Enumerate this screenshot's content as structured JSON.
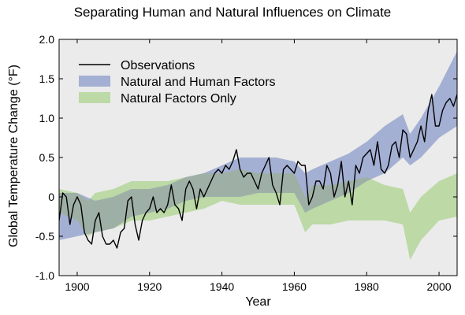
{
  "chart_data": {
    "type": "line",
    "title": "Separating Human and Natural Influences on Climate",
    "xlabel": "Year",
    "ylabel": "Global Temperature Change (°F)",
    "xlim": [
      1895,
      2005
    ],
    "ylim": [
      -1.0,
      2.0
    ],
    "xticks": [
      1900,
      1920,
      1940,
      1960,
      1980,
      2000
    ],
    "yticks": [
      -1.0,
      -0.5,
      0,
      0.5,
      1.0,
      1.5,
      2.0
    ],
    "ytick_labels": [
      "-1.0",
      "-0.5",
      "0",
      "0.5",
      "1.0",
      "1.5",
      "2.0"
    ],
    "grid": false,
    "legend_position": "top-left",
    "legend": [
      "Observations",
      "Natural and Human Factors",
      "Natural Factors Only"
    ],
    "colors": {
      "observations": "#000000",
      "natural_and_human": "#a4b0d3",
      "natural_only": "#bcd9a6",
      "overlap": "#9eb0a6",
      "plot_background": "#ebebeb"
    },
    "series": [
      {
        "name": "Observations",
        "kind": "line",
        "x": [
          1895,
          1896,
          1897,
          1898,
          1899,
          1900,
          1901,
          1902,
          1903,
          1904,
          1905,
          1906,
          1907,
          1908,
          1909,
          1910,
          1911,
          1912,
          1913,
          1914,
          1915,
          1916,
          1917,
          1918,
          1919,
          1920,
          1921,
          1922,
          1923,
          1924,
          1925,
          1926,
          1927,
          1928,
          1929,
          1930,
          1931,
          1932,
          1933,
          1934,
          1935,
          1936,
          1937,
          1938,
          1939,
          1940,
          1941,
          1942,
          1943,
          1944,
          1945,
          1946,
          1947,
          1948,
          1949,
          1950,
          1951,
          1952,
          1953,
          1954,
          1955,
          1956,
          1957,
          1958,
          1959,
          1960,
          1961,
          1962,
          1963,
          1964,
          1965,
          1966,
          1967,
          1968,
          1969,
          1970,
          1971,
          1972,
          1973,
          1974,
          1975,
          1976,
          1977,
          1978,
          1979,
          1980,
          1981,
          1982,
          1983,
          1984,
          1985,
          1986,
          1987,
          1988,
          1989,
          1990,
          1991,
          1992,
          1993,
          1994,
          1995,
          1996,
          1997,
          1998,
          1999,
          2000,
          2001,
          2002,
          2003,
          2004,
          2005
        ],
        "y": [
          -0.3,
          0.05,
          0.0,
          -0.35,
          -0.1,
          0.0,
          -0.1,
          -0.45,
          -0.55,
          -0.6,
          -0.3,
          -0.2,
          -0.5,
          -0.6,
          -0.6,
          -0.55,
          -0.65,
          -0.45,
          -0.4,
          -0.05,
          0.0,
          -0.35,
          -0.55,
          -0.3,
          -0.2,
          -0.15,
          0.0,
          -0.2,
          -0.15,
          -0.2,
          -0.1,
          0.15,
          -0.1,
          -0.15,
          -0.3,
          0.1,
          0.2,
          0.1,
          -0.15,
          0.1,
          0.0,
          0.1,
          0.2,
          0.3,
          0.35,
          0.3,
          0.4,
          0.35,
          0.45,
          0.6,
          0.35,
          0.25,
          0.3,
          0.3,
          0.2,
          0.1,
          0.3,
          0.4,
          0.5,
          0.15,
          0.05,
          -0.1,
          0.35,
          0.4,
          0.35,
          0.3,
          0.45,
          0.4,
          0.4,
          -0.1,
          0.0,
          0.2,
          0.2,
          0.1,
          0.4,
          0.3,
          0.0,
          0.15,
          0.45,
          0.0,
          0.2,
          -0.1,
          0.4,
          0.3,
          0.5,
          0.55,
          0.6,
          0.4,
          0.7,
          0.35,
          0.3,
          0.4,
          0.65,
          0.7,
          0.5,
          0.85,
          0.8,
          0.5,
          0.6,
          0.7,
          0.9,
          0.7,
          1.1,
          1.3,
          0.9,
          0.9,
          1.1,
          1.2,
          1.25,
          1.15,
          1.3
        ]
      },
      {
        "name": "Natural and Human Factors",
        "kind": "band",
        "x": [
          1895,
          1900,
          1905,
          1910,
          1915,
          1920,
          1925,
          1930,
          1935,
          1940,
          1945,
          1950,
          1955,
          1960,
          1963,
          1965,
          1970,
          1975,
          1980,
          1985,
          1990,
          1992,
          1995,
          2000,
          2005
        ],
        "lower": [
          -0.55,
          -0.5,
          -0.45,
          -0.4,
          -0.25,
          -0.2,
          -0.15,
          -0.05,
          0.0,
          0.0,
          0.0,
          0.05,
          0.05,
          0.05,
          -0.2,
          -0.15,
          -0.05,
          0.05,
          0.2,
          0.3,
          0.5,
          0.4,
          0.5,
          0.75,
          0.9
        ],
        "upper": [
          0.05,
          0.05,
          -0.05,
          0.0,
          0.1,
          0.1,
          0.15,
          0.25,
          0.3,
          0.4,
          0.5,
          0.5,
          0.5,
          0.45,
          0.3,
          0.35,
          0.45,
          0.55,
          0.7,
          0.9,
          1.05,
          0.8,
          1.0,
          1.4,
          1.85
        ]
      },
      {
        "name": "Natural Factors Only",
        "kind": "band",
        "x": [
          1895,
          1900,
          1903,
          1905,
          1910,
          1915,
          1920,
          1925,
          1930,
          1935,
          1940,
          1945,
          1950,
          1955,
          1960,
          1963,
          1965,
          1970,
          1975,
          1980,
          1985,
          1990,
          1992,
          1995,
          2000,
          2005
        ],
        "lower": [
          -0.2,
          -0.3,
          -0.5,
          -0.45,
          -0.4,
          -0.3,
          -0.3,
          -0.25,
          -0.2,
          -0.15,
          -0.05,
          -0.1,
          -0.1,
          -0.1,
          -0.1,
          -0.45,
          -0.35,
          -0.35,
          -0.3,
          -0.3,
          -0.3,
          -0.35,
          -0.8,
          -0.55,
          -0.3,
          -0.25
        ],
        "upper": [
          0.1,
          0.05,
          -0.05,
          0.05,
          0.1,
          0.2,
          0.2,
          0.2,
          0.25,
          0.3,
          0.3,
          0.35,
          0.3,
          0.3,
          0.3,
          0.0,
          0.15,
          0.15,
          0.2,
          0.25,
          0.15,
          0.1,
          -0.2,
          0.0,
          0.2,
          0.3
        ]
      }
    ]
  }
}
